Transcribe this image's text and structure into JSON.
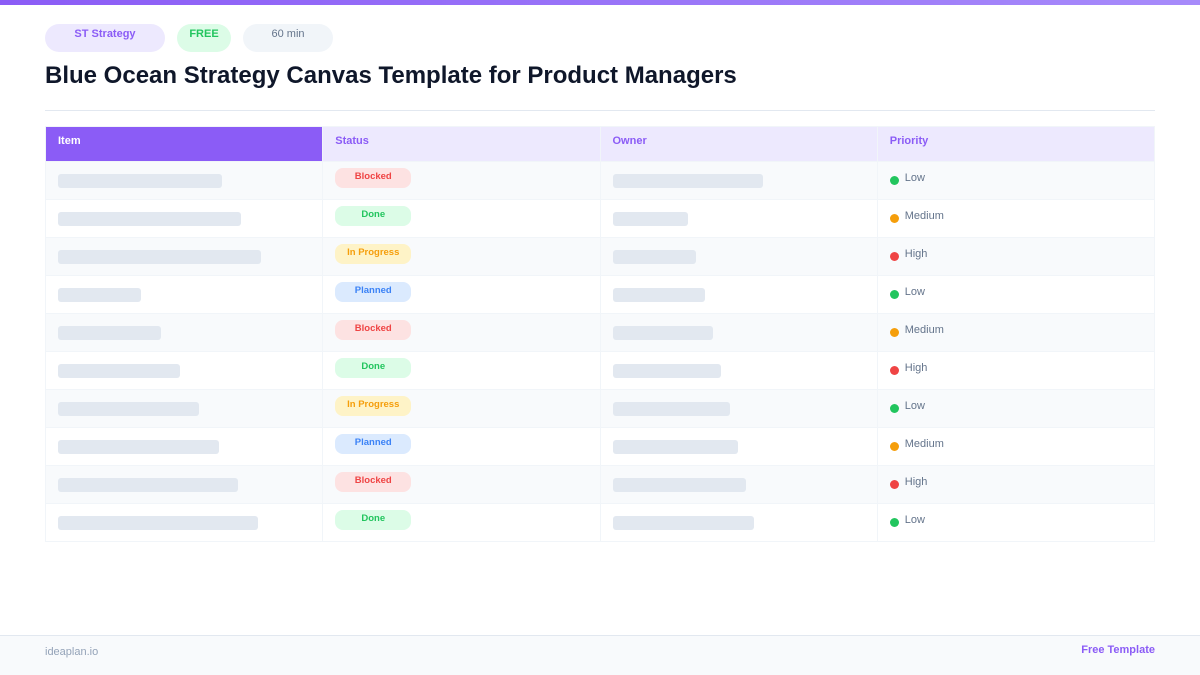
{
  "tags": {
    "category": "ST  Strategy",
    "price": "FREE",
    "duration": "60 min"
  },
  "title": "Blue Ocean Strategy Canvas Template for Product Managers",
  "table": {
    "headers": [
      "Item",
      "Status",
      "Owner",
      "Priority"
    ],
    "rows": [
      {
        "status": "Blocked",
        "priority": "Low"
      },
      {
        "status": "Done",
        "priority": "Medium"
      },
      {
        "status": "In Progress",
        "priority": "High"
      },
      {
        "status": "Planned",
        "priority": "Low"
      },
      {
        "status": "Blocked",
        "priority": "Medium"
      },
      {
        "status": "Done",
        "priority": "High"
      },
      {
        "status": "In Progress",
        "priority": "Low"
      },
      {
        "status": "Planned",
        "priority": "Medium"
      },
      {
        "status": "Blocked",
        "priority": "High"
      },
      {
        "status": "Done",
        "priority": "Low"
      }
    ]
  },
  "status_colors": {
    "Blocked": {
      "bg": "#fde2e2",
      "fg": "#ef4444"
    },
    "Done": {
      "bg": "#dcfce7",
      "fg": "#22c55e"
    },
    "In Progress": {
      "bg": "#fef3c7",
      "fg": "#f59e0b"
    },
    "Planned": {
      "bg": "#dbeafe",
      "fg": "#3b82f6"
    }
  },
  "priority_colors": {
    "Low": "#22c55e",
    "Medium": "#f59e0b",
    "High": "#ef4444"
  },
  "footer": {
    "brand": "ideaplan.io",
    "label": "Free Template"
  }
}
